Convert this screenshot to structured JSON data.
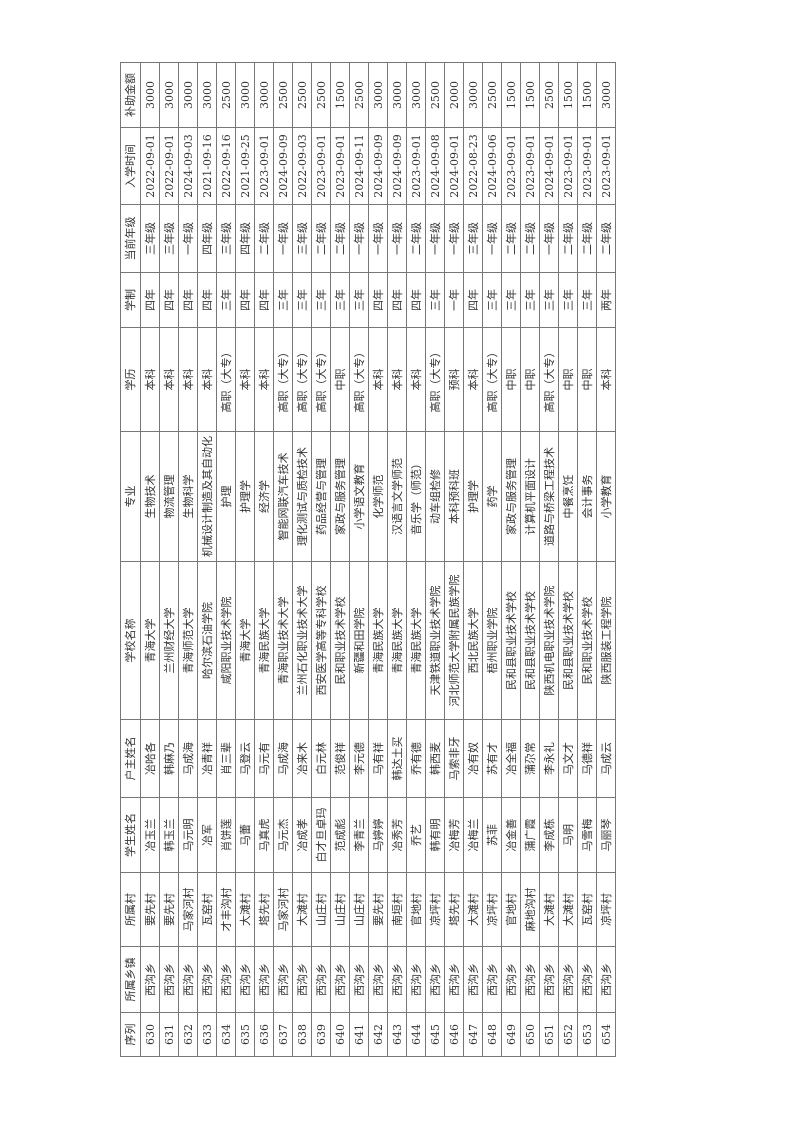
{
  "table": {
    "headers": [
      "序列",
      "所属乡镇",
      "所属村",
      "学生姓名",
      "户主姓名",
      "学校名称",
      "专业",
      "学历",
      "学制",
      "当前年级",
      "入学时间",
      "补助金额"
    ],
    "rows": [
      [
        "630",
        "西沟乡",
        "要先村",
        "冶玉兰",
        "冶哈各",
        "青海大学",
        "生物技术",
        "本科",
        "四年",
        "三年级",
        "2022-09-01",
        "3000"
      ],
      [
        "631",
        "西沟乡",
        "要先村",
        "韩玉兰",
        "韩麻乃",
        "兰州财经大学",
        "物流管理",
        "本科",
        "四年",
        "三年级",
        "2022-09-01",
        "3000"
      ],
      [
        "632",
        "西沟乡",
        "马家河村",
        "马元明",
        "马成海",
        "青海师范大学",
        "生物科学",
        "本科",
        "四年",
        "一年级",
        "2024-09-03",
        "3000"
      ],
      [
        "633",
        "西沟乡",
        "瓦窑村",
        "冶军",
        "冶青祥",
        "哈尔滨石油学院",
        "机械设计制造及其自动化",
        "本科",
        "四年",
        "四年级",
        "2021-09-16",
        "3000"
      ],
      [
        "634",
        "西沟乡",
        "才丰沟村",
        "肖饼莲",
        "肖三辈",
        "咸阳职业技术学院",
        "护理",
        "高职（大专）",
        "三年",
        "三年级",
        "2022-09-16",
        "2500"
      ],
      [
        "635",
        "西沟乡",
        "大滩村",
        "马蕾",
        "马登云",
        "青海大学",
        "护理学",
        "本科",
        "四年",
        "四年级",
        "2021-09-25",
        "3000"
      ],
      [
        "636",
        "西沟乡",
        "塔先村",
        "马真虎",
        "马元有",
        "青海民族大学",
        "经济学",
        "本科",
        "四年",
        "二年级",
        "2023-09-01",
        "3000"
      ],
      [
        "637",
        "西沟乡",
        "马家河村",
        "马元杰",
        "马成海",
        "青海职业技术大学",
        "智能网联汽车技术",
        "高职（大专）",
        "三年",
        "一年级",
        "2024-09-09",
        "2500"
      ],
      [
        "638",
        "西沟乡",
        "大滩村",
        "冶成孝",
        "冶来木",
        "兰州石化职业技术大学",
        "理化测试与质检技术",
        "高职（大专）",
        "三年",
        "三年级",
        "2022-09-03",
        "2500"
      ],
      [
        "639",
        "西沟乡",
        "山庄村",
        "白才旦卓玛",
        "白元林",
        "西安医学高等专科学校",
        "药品经营与管理",
        "高职（大专）",
        "三年",
        "二年级",
        "2023-09-01",
        "2500"
      ],
      [
        "640",
        "西沟乡",
        "山庄村",
        "范成彪",
        "范俊祥",
        "民和职业技术学校",
        "家政与服务管理",
        "中职",
        "三年",
        "二年级",
        "2023-09-01",
        "1500"
      ],
      [
        "641",
        "西沟乡",
        "山庄村",
        "李青兰",
        "李元德",
        "新疆和田学院",
        "小学语文教育",
        "高职（大专）",
        "三年",
        "一年级",
        "2024-09-11",
        "2500"
      ],
      [
        "642",
        "西沟乡",
        "要先村",
        "马婷婷",
        "马有祥",
        "青海民族大学",
        "化学师范",
        "本科",
        "四年",
        "一年级",
        "2024-09-09",
        "3000"
      ],
      [
        "643",
        "西沟乡",
        "南垣村",
        "冶秀芳",
        "韩达土买",
        "青海民族大学",
        "汉语言文学师范",
        "本科",
        "四年",
        "一年级",
        "2024-09-09",
        "3000"
      ],
      [
        "644",
        "西沟乡",
        "官地村",
        "乔艺",
        "乔有德",
        "青海民族大学",
        "音乐学（师范）",
        "本科",
        "四年",
        "二年级",
        "2023-09-01",
        "3000"
      ],
      [
        "645",
        "西沟乡",
        "凉坪村",
        "韩有明",
        "韩西麦",
        "天津铁道职业技术学院",
        "动车组检修",
        "高职（大专）",
        "三年",
        "一年级",
        "2024-09-08",
        "2500"
      ],
      [
        "646",
        "西沟乡",
        "塔先村",
        "冶梅芳",
        "马索非牙",
        "河北师范大学附属民族学院",
        "本科预科班",
        "预科",
        "一年",
        "一年级",
        "2024-09-01",
        "2000"
      ],
      [
        "647",
        "西沟乡",
        "大滩村",
        "冶梅兰",
        "冶有奴",
        "西北民族大学",
        "护理学",
        "本科",
        "四年",
        "三年级",
        "2022-08-23",
        "3000"
      ],
      [
        "648",
        "西沟乡",
        "凉坪村",
        "苏菲",
        "苏有才",
        "梧州职业学院",
        "药学",
        "高职（大专）",
        "三年",
        "一年级",
        "2024-09-06",
        "2500"
      ],
      [
        "649",
        "西沟乡",
        "官地村",
        "冶金善",
        "冶全福",
        "民和县职业技术学校",
        "家政与服务管理",
        "中职",
        "三年",
        "二年级",
        "2023-09-01",
        "1500"
      ],
      [
        "650",
        "西沟乡",
        "麻地沟村",
        "蒲广霞",
        "蒲尕常",
        "民和县职业技术学校",
        "计算机平面设计",
        "中职",
        "三年",
        "二年级",
        "2023-09-01",
        "1500"
      ],
      [
        "651",
        "西沟乡",
        "大滩村",
        "李成栋",
        "李永礼",
        "陕西机电职业技术学院",
        "道路与桥梁工程技术",
        "高职（大专）",
        "三年",
        "一年级",
        "2024-09-01",
        "2500"
      ],
      [
        "652",
        "西沟乡",
        "大滩村",
        "马明",
        "马文才",
        "民和县职业技术学校",
        "中餐烹饪",
        "中职",
        "三年",
        "二年级",
        "2023-09-01",
        "1500"
      ],
      [
        "653",
        "西沟乡",
        "瓦窑村",
        "马雪梅",
        "马德祥",
        "民和职业技术学校",
        "会计事务",
        "中职",
        "三年",
        "二年级",
        "2023-09-01",
        "1500"
      ],
      [
        "654",
        "西沟乡",
        "凉坪村",
        "马丽琴",
        "马成云",
        "陕西服装工程学院",
        "小学教育",
        "本科",
        "两年",
        "二年级",
        "2023-09-01",
        "3000"
      ]
    ]
  }
}
